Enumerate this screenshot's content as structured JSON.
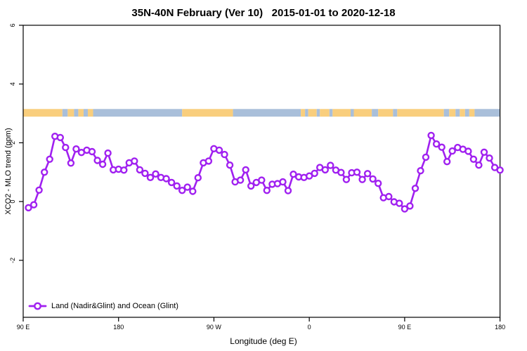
{
  "figure": {
    "background": "#ffffff",
    "text_color": "#000000"
  },
  "chart_data": {
    "type": "line",
    "title": "35N-40N February (Ver 10)   2015-01-01 to 2020-12-18",
    "xlabel": "Longitude (deg E)",
    "ylabel": "XCO2 - MLO trend (ppm)",
    "xlim": [
      90,
      540
    ],
    "ylim": [
      -3.94,
      6.0
    ],
    "grid": false,
    "x_ticks": {
      "values": [
        90,
        180,
        270,
        360,
        450,
        540
      ],
      "labels": [
        "90 E",
        "180",
        "90 W",
        "0",
        "90 E",
        "180"
      ]
    },
    "y_ticks": {
      "values": [
        -2,
        0,
        2,
        4,
        6
      ],
      "labels": [
        "-2",
        "0",
        "2",
        "4",
        "6"
      ],
      "rotated": true
    },
    "legend": {
      "position": "bottom-left",
      "entries": [
        {
          "label": "Land (Nadir&Glint) and Ocean (Glint)",
          "color": "#A020F0",
          "marker": "open-circle"
        }
      ]
    },
    "series": [
      {
        "name": "Land (Nadir&Glint) and Ocean (Glint)",
        "color": "#A020F0",
        "marker": "open-circle",
        "x": [
          95,
          100,
          105,
          110,
          115,
          120,
          125,
          130,
          135,
          140,
          145,
          150,
          155,
          160,
          165,
          170,
          175,
          180,
          185,
          190,
          195,
          200,
          205,
          210,
          215,
          220,
          225,
          230,
          235,
          240,
          245,
          250,
          255,
          260,
          265,
          270,
          275,
          280,
          285,
          290,
          295,
          300,
          305,
          310,
          315,
          320,
          325,
          330,
          335,
          340,
          345,
          350,
          355,
          360,
          365,
          370,
          375,
          380,
          385,
          390,
          395,
          400,
          405,
          410,
          415,
          420,
          425,
          430,
          435,
          440,
          445,
          450,
          455,
          460,
          465,
          470,
          475,
          480,
          485,
          490,
          495,
          500,
          505,
          510,
          515,
          520,
          525,
          530,
          535,
          540
        ],
        "y": [
          -0.21,
          -0.11,
          0.39,
          1.0,
          1.44,
          2.22,
          2.18,
          1.84,
          1.31,
          1.79,
          1.67,
          1.75,
          1.7,
          1.4,
          1.27,
          1.65,
          1.08,
          1.1,
          1.07,
          1.32,
          1.38,
          1.08,
          0.96,
          0.82,
          0.94,
          0.82,
          0.78,
          0.65,
          0.53,
          0.38,
          0.49,
          0.35,
          0.81,
          1.32,
          1.38,
          1.8,
          1.75,
          1.6,
          1.24,
          0.67,
          0.73,
          1.08,
          0.53,
          0.65,
          0.73,
          0.38,
          0.59,
          0.61,
          0.67,
          0.37,
          0.93,
          0.84,
          0.82,
          0.87,
          0.96,
          1.16,
          1.08,
          1.23,
          1.07,
          0.99,
          0.75,
          0.98,
          1.0,
          0.75,
          0.95,
          0.77,
          0.62,
          0.13,
          0.17,
          -0.01,
          -0.06,
          -0.25,
          -0.15,
          0.45,
          1.05,
          1.51,
          2.25,
          1.96,
          1.85,
          1.36,
          1.72,
          1.84,
          1.78,
          1.71,
          1.44,
          1.24,
          1.68,
          1.48,
          1.16,
          1.07
        ]
      }
    ],
    "surface_type_band": {
      "description": "land/ocean strip",
      "y_from": 2.89,
      "y_to": 3.15,
      "land_color": "#F9CE7D",
      "ocean_color": "#A9BFDA",
      "segments": [
        {
          "from": 90,
          "to": 127,
          "type": "land"
        },
        {
          "from": 127,
          "to": 132,
          "type": "ocean"
        },
        {
          "from": 132,
          "to": 138,
          "type": "land"
        },
        {
          "from": 138,
          "to": 142,
          "type": "ocean"
        },
        {
          "from": 142,
          "to": 147,
          "type": "land"
        },
        {
          "from": 147,
          "to": 151,
          "type": "ocean"
        },
        {
          "from": 151,
          "to": 156,
          "type": "land"
        },
        {
          "from": 156,
          "to": 240,
          "type": "ocean"
        },
        {
          "from": 240,
          "to": 288,
          "type": "land"
        },
        {
          "from": 288,
          "to": 352,
          "type": "ocean"
        },
        {
          "from": 352,
          "to": 356,
          "type": "land"
        },
        {
          "from": 356,
          "to": 359,
          "type": "ocean"
        },
        {
          "from": 359,
          "to": 367,
          "type": "land"
        },
        {
          "from": 367,
          "to": 370,
          "type": "ocean"
        },
        {
          "from": 370,
          "to": 379,
          "type": "land"
        },
        {
          "from": 379,
          "to": 382,
          "type": "ocean"
        },
        {
          "from": 382,
          "to": 399,
          "type": "land"
        },
        {
          "from": 399,
          "to": 402,
          "type": "ocean"
        },
        {
          "from": 402,
          "to": 419,
          "type": "land"
        },
        {
          "from": 419,
          "to": 425,
          "type": "ocean"
        },
        {
          "from": 425,
          "to": 439,
          "type": "land"
        },
        {
          "from": 439,
          "to": 443,
          "type": "ocean"
        },
        {
          "from": 443,
          "to": 487,
          "type": "land"
        },
        {
          "from": 487,
          "to": 492,
          "type": "ocean"
        },
        {
          "from": 492,
          "to": 498,
          "type": "land"
        },
        {
          "from": 498,
          "to": 502,
          "type": "ocean"
        },
        {
          "from": 502,
          "to": 507,
          "type": "land"
        },
        {
          "from": 507,
          "to": 511,
          "type": "ocean"
        },
        {
          "from": 511,
          "to": 516,
          "type": "land"
        },
        {
          "from": 516,
          "to": 540,
          "type": "ocean"
        }
      ]
    }
  }
}
